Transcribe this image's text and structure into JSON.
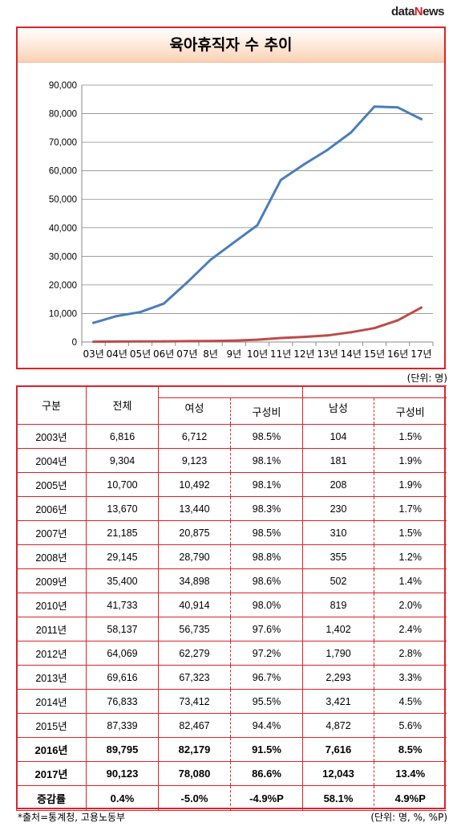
{
  "brand": {
    "part1": "data",
    "part2": "N",
    "part3": "ews"
  },
  "chart_data": {
    "type": "line",
    "title": "육아휴직자 수 추이",
    "categories": [
      "03년",
      "04년",
      "05년",
      "06년",
      "07년",
      "8년",
      "9년",
      "10년",
      "11년",
      "12년",
      "13년",
      "14년",
      "15년",
      "16년",
      "17년"
    ],
    "series": [
      {
        "name": "여성",
        "color": "#4a7ebb",
        "values": [
          6712,
          9123,
          10492,
          13440,
          20875,
          28790,
          34898,
          40914,
          56735,
          62279,
          67323,
          73412,
          82467,
          82179,
          78080
        ]
      },
      {
        "name": "남성",
        "color": "#be4b48",
        "values": [
          104,
          181,
          208,
          230,
          310,
          355,
          502,
          819,
          1402,
          1790,
          2293,
          3421,
          4872,
          7616,
          12043
        ]
      }
    ],
    "ylim": [
      0,
      90000
    ],
    "yticks": [
      "0",
      "10,000",
      "20,000",
      "30,000",
      "40,000",
      "50,000",
      "60,000",
      "70,000",
      "80,000",
      "90,000"
    ],
    "grid": true,
    "legend": "bottom"
  },
  "unit_top": "(단위: 명)",
  "table": {
    "headers": {
      "col0": "구분",
      "col1": "전체",
      "female": "여성",
      "female_ratio": "구성비",
      "male": "남성",
      "male_ratio": "구성비"
    },
    "rows": [
      [
        "2003년",
        "6,816",
        "6,712",
        "98.5%",
        "104",
        "1.5%"
      ],
      [
        "2004년",
        "9,304",
        "9,123",
        "98.1%",
        "181",
        "1.9%"
      ],
      [
        "2005년",
        "10,700",
        "10,492",
        "98.1%",
        "208",
        "1.9%"
      ],
      [
        "2006년",
        "13,670",
        "13,440",
        "98.3%",
        "230",
        "1.7%"
      ],
      [
        "2007년",
        "21,185",
        "20,875",
        "98.5%",
        "310",
        "1.5%"
      ],
      [
        "2008년",
        "29,145",
        "28,790",
        "98.8%",
        "355",
        "1.2%"
      ],
      [
        "2009년",
        "35,400",
        "34,898",
        "98.6%",
        "502",
        "1.4%"
      ],
      [
        "2010년",
        "41,733",
        "40,914",
        "98.0%",
        "819",
        "2.0%"
      ],
      [
        "2011년",
        "58,137",
        "56,735",
        "97.6%",
        "1,402",
        "2.4%"
      ],
      [
        "2012년",
        "64,069",
        "62,279",
        "97.2%",
        "1,790",
        "2.8%"
      ],
      [
        "2013년",
        "69,616",
        "67,323",
        "96.7%",
        "2,293",
        "3.3%"
      ],
      [
        "2014년",
        "76,833",
        "73,412",
        "95.5%",
        "3,421",
        "4.5%"
      ],
      [
        "2015년",
        "87,339",
        "82,467",
        "94.4%",
        "4,872",
        "5.6%"
      ]
    ],
    "bold_rows": [
      [
        "2016년",
        "89,795",
        "82,179",
        "91.5%",
        "7,616",
        "8.5%"
      ],
      [
        "2017년",
        "90,123",
        "78,080",
        "86.6%",
        "12,043",
        "13.4%"
      ]
    ],
    "change_row": [
      "증감률",
      "0.4%",
      "-5.0%",
      "-4.9%P",
      "58.1%",
      "4.9%P"
    ]
  },
  "footer": {
    "source": "*출처=통계청, 고용노동부",
    "unit": "(단위: 명, %, %P)"
  }
}
